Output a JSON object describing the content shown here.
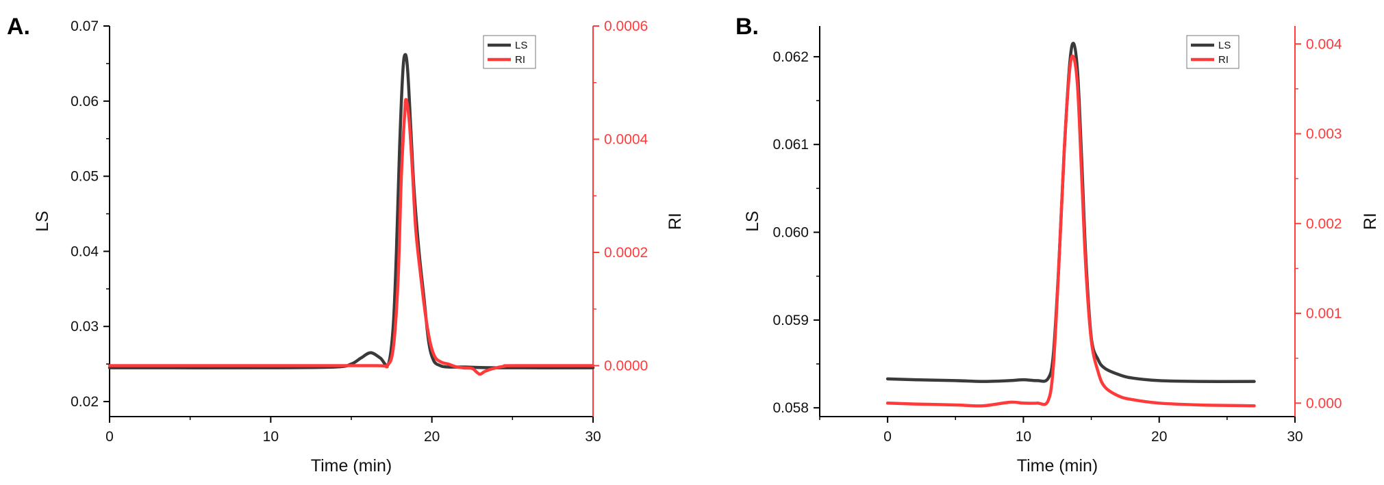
{
  "colors": {
    "ls": "#3a3a3a",
    "ri": "#ff3a3a",
    "axis": "#000000"
  },
  "chart_data": [
    {
      "panel_label": "A.",
      "type": "line",
      "xlabel": "Time (min)",
      "ylabel_left": "LS",
      "ylabel_right": "RI",
      "xlim": [
        0,
        30
      ],
      "ylim_left": [
        0.018,
        0.07
      ],
      "ylim_right": [
        -9e-05,
        0.0006
      ],
      "xticks": [
        0,
        10,
        20,
        30
      ],
      "yticks_left": [
        0.02,
        0.03,
        0.04,
        0.05,
        0.06,
        0.07
      ],
      "yticks_left_labels": [
        "0.02",
        "0.03",
        "0.04",
        "0.05",
        "0.06",
        "0.07"
      ],
      "yticks_right": [
        0.0,
        0.0002,
        0.0004,
        0.0006
      ],
      "yticks_right_labels": [
        "0.0000",
        "0.0002",
        "0.0004",
        "0.0006"
      ],
      "legend": [
        "LS",
        "RI"
      ],
      "legend_position": "top-right",
      "series": [
        {
          "name": "LS",
          "axis": "left",
          "x": [
            0,
            10,
            14.0,
            15.0,
            15.6,
            16.2,
            16.8,
            17.3,
            17.6,
            17.8,
            18.0,
            18.2,
            18.35,
            18.5,
            18.7,
            18.9,
            19.2,
            19.5,
            19.8,
            20.1,
            20.5,
            21.0,
            22.0,
            24.0,
            30.0
          ],
          "y": [
            0.0245,
            0.0245,
            0.0246,
            0.025,
            0.0258,
            0.0265,
            0.0258,
            0.025,
            0.03,
            0.04,
            0.054,
            0.064,
            0.0662,
            0.064,
            0.056,
            0.048,
            0.04,
            0.034,
            0.028,
            0.0255,
            0.0248,
            0.0246,
            0.0246,
            0.0245,
            0.0245
          ]
        },
        {
          "name": "RI",
          "axis": "right",
          "x": [
            0,
            10,
            16.5,
            17.2,
            17.6,
            17.9,
            18.1,
            18.3,
            18.4,
            18.6,
            18.8,
            19.0,
            19.3,
            19.6,
            19.9,
            20.2,
            20.6,
            21.0,
            21.5,
            22.0,
            22.5,
            22.8,
            23.0,
            23.3,
            23.8,
            24.5,
            25.0,
            30.0
          ],
          "y": [
            0.0,
            0.0,
            0.0,
            0.0,
            3e-05,
            0.00015,
            0.00033,
            0.00044,
            0.00047,
            0.00043,
            0.00034,
            0.00024,
            0.00016,
            9e-05,
            4e-05,
            1.5e-05,
            6e-06,
            3e-06,
            -2e-06,
            -4e-06,
            -5e-06,
            -1.2e-05,
            -1.5e-05,
            -1e-05,
            -5e-06,
            -1e-06,
            0.0,
            0.0
          ]
        }
      ]
    },
    {
      "panel_label": "B.",
      "type": "line",
      "xlabel": "Time (min)",
      "ylabel_left": "LS",
      "ylabel_right": "RI",
      "xlim": [
        -5,
        30
      ],
      "ylim_left": [
        0.0579,
        0.06235
      ],
      "ylim_right": [
        -0.00015,
        0.0042
      ],
      "xticks": [
        0,
        10,
        20,
        30
      ],
      "yticks_left": [
        0.058,
        0.059,
        0.06,
        0.061,
        0.062
      ],
      "yticks_left_labels": [
        "0.058",
        "0.059",
        "0.060",
        "0.061",
        "0.062"
      ],
      "yticks_right": [
        0.0,
        0.001,
        0.002,
        0.003,
        0.004
      ],
      "yticks_right_labels": [
        "0.000",
        "0.001",
        "0.002",
        "0.003",
        "0.004"
      ],
      "legend": [
        "LS",
        "RI"
      ],
      "legend_position": "top-right",
      "series": [
        {
          "name": "LS",
          "axis": "left",
          "x": [
            0,
            2,
            5,
            7,
            9,
            10,
            11,
            11.8,
            12.2,
            12.6,
            13.0,
            13.4,
            13.7,
            14.0,
            14.3,
            14.6,
            15.0,
            15.5,
            16.0,
            17.0,
            18.0,
            20.0,
            23.0,
            27.0
          ],
          "y": [
            0.05833,
            0.05832,
            0.05831,
            0.0583,
            0.05831,
            0.05832,
            0.05831,
            0.05833,
            0.0586,
            0.0596,
            0.0609,
            0.0619,
            0.06215,
            0.0618,
            0.0608,
            0.0597,
            0.0588,
            0.05855,
            0.05845,
            0.05838,
            0.05834,
            0.05831,
            0.0583,
            0.0583
          ]
        },
        {
          "name": "RI",
          "axis": "right",
          "x": [
            0,
            2,
            5,
            7,
            9,
            10,
            11,
            11.8,
            12.2,
            12.6,
            13.0,
            13.4,
            13.7,
            14.0,
            14.3,
            14.6,
            15.0,
            15.5,
            16.0,
            17.0,
            18.0,
            20.0,
            23.0,
            27.0
          ],
          "y": [
            0.0,
            -1e-05,
            -2e-05,
            -3e-05,
            1e-05,
            0.0,
            0.0,
            2e-05,
            0.0004,
            0.0015,
            0.0028,
            0.0037,
            0.00385,
            0.0035,
            0.0025,
            0.0015,
            0.0007,
            0.00035,
            0.00018,
            8e-05,
            4e-05,
            0.0,
            -2e-05,
            -3e-05
          ]
        }
      ]
    }
  ]
}
